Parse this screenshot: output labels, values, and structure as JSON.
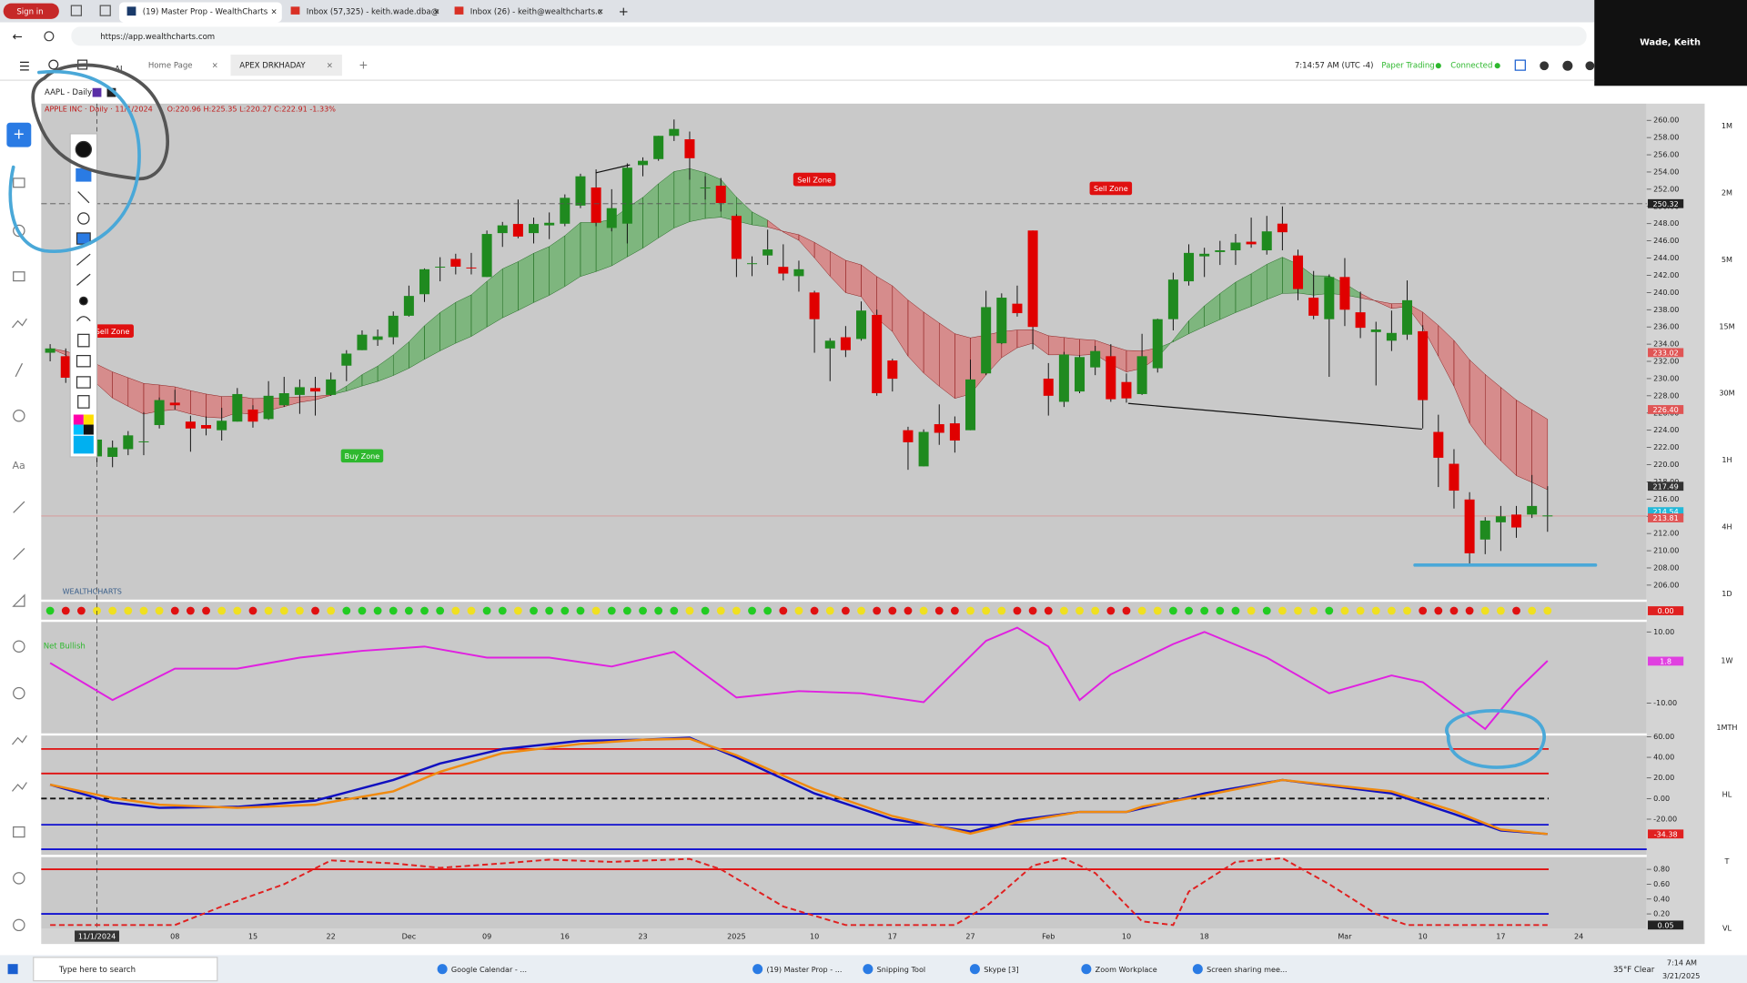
{
  "browser": {
    "sign_in": "Sign in",
    "tabs": [
      "(19) Master Prop - WealthCharts",
      "Inbox (57,325) - keith.wade.dba@",
      "Inbox (26) - keith@wealthcharts.c"
    ],
    "url": "https://app.wealthcharts.com",
    "user": "Wade, Keith"
  },
  "app": {
    "ai": "AI",
    "tabs": [
      "Home Page",
      "APEX DRKHADAY"
    ],
    "clock": "7:14:57 AM  (UTC -4)",
    "paper": "Paper Trading",
    "connected": "Connected",
    "symbol": "AAPL - Daily",
    "timeframes": [
      "1M",
      "2M",
      "5M",
      "15M",
      "30M",
      "1H",
      "4H",
      "1D",
      "1W",
      "1MTH",
      "HL",
      "T",
      "VL"
    ]
  },
  "taskbar": {
    "search": "Type here to search",
    "items": [
      "Google Calendar - ...",
      "(19) Master Prop - ...",
      "Snipping Tool",
      "Skype [3]",
      "Zoom Workplace",
      "Screen sharing mee..."
    ],
    "weather": "35°F  Clear",
    "time": "7:14 AM",
    "date": "3/21/2025"
  },
  "chart_data": [
    {
      "type": "candlestick",
      "legend": "APPLE INC · Daily · 11/1/2024",
      "readout": "O:220.96 H:225.35 L:220.27 C:222.91 -1.33%",
      "watermark": "WEALTHCHARTS",
      "up_color": "#1f8a1f",
      "down_color": "#e00000",
      "open": [
        233,
        232.6,
        229.3,
        220.96,
        220.9,
        221.8,
        222.6,
        224.6,
        227.2,
        225,
        224.6,
        224,
        225,
        226.4,
        225.3,
        226.9,
        228.1,
        228.9,
        228.1,
        231.5,
        233.3,
        234.5,
        234.8,
        237.3,
        239.8,
        242.9,
        243.9,
        242.9,
        241.8,
        246.9,
        247.96,
        246.9,
        247.8,
        247.99,
        250.1,
        252.2,
        247.5,
        248,
        254.8,
        255.5,
        258.2,
        257.8,
        252.2,
        252.4,
        248.9,
        243.4,
        244.3,
        242.98,
        241.9,
        240,
        233.5,
        234.8,
        234.6,
        237.4,
        232.1,
        224,
        219.8,
        224.7,
        224.8,
        224,
        230.6,
        234.1,
        238.7,
        247.2,
        229.99,
        227.3,
        228.5,
        231.3,
        232.6,
        229.6,
        228.2,
        231.2,
        236.9,
        241.3,
        244.2,
        244.7,
        244.9,
        245.9,
        244.9,
        248,
        244.3,
        239.4,
        236.9,
        241.8,
        237.7,
        235.4,
        234.4,
        235.1,
        235.5,
        223.8,
        220.1,
        215.95,
        211.3,
        213.3,
        214.2,
        214.2,
        213.99
      ],
      "high": [
        234,
        233.5,
        229.8,
        225.35,
        222.8,
        223.9,
        226.1,
        227.8,
        228.7,
        225.7,
        225.6,
        226.6,
        228.9,
        226.9,
        229.7,
        230.2,
        229.9,
        230.2,
        230.7,
        233.3,
        235.6,
        235.7,
        237.8,
        240.8,
        242.8,
        244.1,
        244.5,
        244.6,
        247.2,
        248.2,
        250.8,
        248.7,
        249.3,
        251.4,
        253.8,
        254.3,
        252,
        255,
        255.7,
        258.2,
        260.1,
        258.7,
        253.5,
        253.3,
        249.1,
        244.2,
        247.3,
        245.6,
        243.7,
        240.2,
        234.7,
        236.1,
        238.96,
        238,
        232.3,
        224.4,
        224.1,
        227,
        225.6,
        232.2,
        240.2,
        239.9,
        240.8,
        247.2,
        231.8,
        233.1,
        232.7,
        233.8,
        234,
        230.6,
        235.2,
        236.96,
        242.3,
        245.6,
        245.2,
        246,
        246.8,
        248.7,
        248.9,
        250,
        244.98,
        242.5,
        242.1,
        244,
        240.1,
        236.6,
        237.9,
        241.4,
        236.2,
        225.8,
        221.8,
        216.8,
        213.9,
        215.2,
        215.2,
        218.8,
        217.5
      ],
      "low": [
        232,
        229.5,
        225.4,
        220.27,
        219.7,
        221.1,
        221.1,
        224.2,
        226.4,
        221.5,
        223.4,
        222.8,
        225,
        224.3,
        225.2,
        226.7,
        225.9,
        225.7,
        228,
        229.7,
        233.3,
        233.8,
        233.97,
        237.2,
        238.9,
        241.3,
        242.1,
        242.1,
        241.8,
        245.3,
        246.3,
        245.7,
        246.2,
        247.7,
        249.8,
        247.7,
        247.1,
        245.7,
        253.5,
        255.3,
        257.6,
        253.1,
        250.8,
        249.4,
        241.8,
        241.9,
        243.2,
        241.4,
        240.1,
        233,
        229.7,
        232.5,
        234.4,
        228,
        228.5,
        219.4,
        219.8,
        222.3,
        221.4,
        224,
        230.4,
        234,
        237.2,
        233.4,
        225.7,
        226.7,
        228.3,
        230.4,
        227.3,
        227.2,
        228.1,
        230.7,
        235.6,
        240.8,
        241.8,
        243.2,
        243.2,
        245.2,
        244.4,
        244.9,
        239.1,
        236.9,
        230.2,
        236.1,
        234.7,
        229.2,
        233.2,
        234.5,
        224.2,
        217.4,
        214.9,
        208.4,
        209.6,
        209.97,
        211.5,
        213.8,
        212.2
      ],
      "close": [
        233.5,
        230.1,
        225.9,
        222.91,
        222,
        223.4,
        222.7,
        227.5,
        226.9,
        224.2,
        224.2,
        225.1,
        228.2,
        225,
        228,
        228.3,
        229,
        228.5,
        229.9,
        232.9,
        235.1,
        234.9,
        237.3,
        239.6,
        242.7,
        243,
        243,
        242.8,
        246.8,
        247.8,
        246.5,
        247.96,
        248.1,
        251,
        253.5,
        248.1,
        249.8,
        254.5,
        255.3,
        258.2,
        259,
        255.6,
        252.2,
        250.4,
        243.9,
        243.4,
        245,
        242.2,
        242.7,
        236.9,
        234.4,
        233.3,
        237.9,
        228.3,
        229.98,
        222.6,
        223.8,
        223.7,
        222.8,
        229.9,
        238.3,
        239.4,
        237.6,
        236,
        228,
        232.8,
        232.5,
        233.2,
        227.6,
        227.7,
        232.6,
        236.9,
        241.5,
        244.6,
        244.5,
        244.9,
        245.8,
        245.6,
        247.1,
        247,
        240.4,
        237.3,
        241.8,
        238,
        235.9,
        235.7,
        235.3,
        239.1,
        227.5,
        220.8,
        216.98,
        209.7,
        213.5,
        214,
        212.7,
        215.2,
        214.1
      ],
      "ylim": [
        204.32,
        261.94
      ],
      "yticks": [
        {
          "value": 260,
          "label": "260.00"
        },
        {
          "value": 258,
          "label": "258.00"
        },
        {
          "value": 256,
          "label": "256.00"
        },
        {
          "value": 254,
          "label": "254.00"
        },
        {
          "value": 252,
          "label": "252.00"
        },
        {
          "value": 250,
          "label": "250.00"
        },
        {
          "value": 248,
          "label": "248.00"
        },
        {
          "value": 246,
          "label": "246.00"
        },
        {
          "value": 244,
          "label": "244.00"
        },
        {
          "value": 242,
          "label": "242.00"
        },
        {
          "value": 240,
          "label": "240.00"
        },
        {
          "value": 238,
          "label": "238.00"
        },
        {
          "value": 236,
          "label": "236.00"
        },
        {
          "value": 234,
          "label": "234.00"
        },
        {
          "value": 232,
          "label": "232.00"
        },
        {
          "value": 230,
          "label": "230.00"
        },
        {
          "value": 228,
          "label": "228.00"
        },
        {
          "value": 226,
          "label": "226.00"
        },
        {
          "value": 224,
          "label": "224.00"
        },
        {
          "value": 222,
          "label": "222.00"
        },
        {
          "value": 220,
          "label": "220.00"
        },
        {
          "value": 218,
          "label": "218.00"
        },
        {
          "value": 216,
          "label": "216.00"
        },
        {
          "value": 214,
          "label": "214.00"
        },
        {
          "value": 212,
          "label": "212.00"
        },
        {
          "value": 210,
          "label": "210.00"
        },
        {
          "value": 208,
          "label": "208.00"
        },
        {
          "value": 206,
          "label": "206.00"
        }
      ],
      "markers": [
        {
          "value": 250.32,
          "color": "#222222"
        },
        {
          "value": 233.02,
          "color": "#e05555"
        },
        {
          "value": 226.4,
          "label": "226.40",
          "color": "#e05555"
        },
        {
          "value": 217.49,
          "color": "#333333"
        },
        {
          "value": 214.54,
          "color": "#22b8d8"
        },
        {
          "value": 213.81,
          "color": "#e05555"
        }
      ],
      "signal_badge": {
        "value": 0,
        "label": "0.00"
      },
      "x_labels": [
        "11/1/2024",
        "08",
        "15",
        "22",
        "Dec",
        "09",
        "16",
        "23",
        "2025",
        "10",
        "17",
        "27",
        "Feb",
        "10",
        "18",
        "Mar",
        "10",
        "17",
        "24"
      ],
      "annotations": [
        {
          "text": "Sell Zone",
          "color": "#e01010"
        },
        {
          "text": "Buy Zone",
          "color": "#2eb82e"
        },
        {
          "text": "Sell Zone",
          "color": "#e01010"
        },
        {
          "text": "Sell Zone",
          "color": "#e01010"
        }
      ]
    },
    {
      "type": "line",
      "label": "Net Bullish",
      "ylim": [
        -18.44,
        12.81
      ],
      "yticks": [
        {
          "value": 10,
          "label": "10.00"
        },
        {
          "value": -10,
          "label": "-10.00"
        }
      ],
      "markers": [
        {
          "value": 1.8,
          "color": "#e040e0"
        }
      ],
      "x": [
        0,
        4,
        8,
        12,
        16,
        20,
        24,
        28,
        32,
        36,
        40,
        44,
        48,
        52,
        56,
        60,
        62,
        64,
        66,
        68,
        72,
        74,
        78,
        82,
        86,
        88,
        92,
        94,
        96
      ],
      "series": [
        {
          "color": "#e020e0",
          "values": [
            1.3,
            -9.1,
            -0.3,
            -0.3,
            2.8,
            4.7,
            5.9,
            2.8,
            2.8,
            0.3,
            4.4,
            -8.4,
            -6.6,
            -7.2,
            -9.7,
            7.5,
            11.2,
            5.9,
            -9.1,
            -1.9,
            6.6,
            10,
            2.8,
            -7.2,
            -2.2,
            -4.1,
            -17.2,
            -6.6,
            1.9
          ]
        }
      ]
    },
    {
      "type": "line",
      "ylim": [
        -54.59,
        61.08
      ],
      "yticks": [
        {
          "value": 60,
          "label": "60.00"
        },
        {
          "value": 40,
          "label": "40.00"
        },
        {
          "value": 20,
          "label": "20.00"
        },
        {
          "value": 0,
          "label": "0.00"
        },
        {
          "value": -20,
          "label": "-20.00"
        }
      ],
      "markers": [
        {
          "value": -34.38,
          "color": "#e02020"
        }
      ],
      "x": [
        0,
        4,
        7,
        12,
        17,
        22,
        25,
        29,
        34,
        38,
        41,
        44,
        49,
        54,
        59,
        62,
        66,
        69,
        70,
        74,
        79,
        86,
        90,
        93,
        96
      ],
      "series": [
        {
          "color": "#1010c0",
          "values": [
            13.5,
            -3.8,
            -9,
            -8,
            -2,
            18,
            34,
            48,
            56,
            57,
            59,
            40,
            5,
            -20,
            -32,
            -21,
            -13,
            -13,
            -9.5,
            5,
            18,
            5,
            -15,
            -31,
            -34.38
          ]
        },
        {
          "color": "#f08a10",
          "values": [
            13.5,
            0.5,
            -6,
            -9,
            -6,
            7,
            26,
            44,
            53,
            57,
            58,
            42,
            9,
            -17,
            -34,
            -23,
            -13,
            -13,
            -8,
            3,
            18,
            7,
            -12,
            -30,
            -34.38
          ]
        }
      ]
    },
    {
      "type": "line",
      "ylim": [
        0.005,
        0.965
      ],
      "yticks": [
        {
          "value": 0.8,
          "label": "0.80"
        },
        {
          "value": 0.6,
          "label": "0.60"
        },
        {
          "value": 0.4,
          "label": "0.40"
        },
        {
          "value": 0.2,
          "label": "0.20"
        }
      ],
      "markers": [
        {
          "value": 0.05,
          "color": "#222222"
        }
      ],
      "x": [
        0,
        8,
        11,
        15,
        18,
        22,
        25,
        29,
        32,
        36,
        41,
        43,
        47,
        51,
        58,
        60,
        63,
        65,
        67,
        70,
        72,
        73,
        76,
        79,
        82,
        85,
        87,
        96
      ],
      "series": [
        {
          "color": "#e02020",
          "dash": true,
          "values": [
            0.05,
            0.05,
            0.3,
            0.6,
            0.92,
            0.88,
            0.82,
            0.88,
            0.93,
            0.9,
            0.94,
            0.8,
            0.3,
            0.05,
            0.05,
            0.3,
            0.85,
            0.95,
            0.75,
            0.1,
            0.05,
            0.5,
            0.9,
            0.95,
            0.6,
            0.2,
            0.05,
            0.05
          ]
        }
      ]
    }
  ]
}
